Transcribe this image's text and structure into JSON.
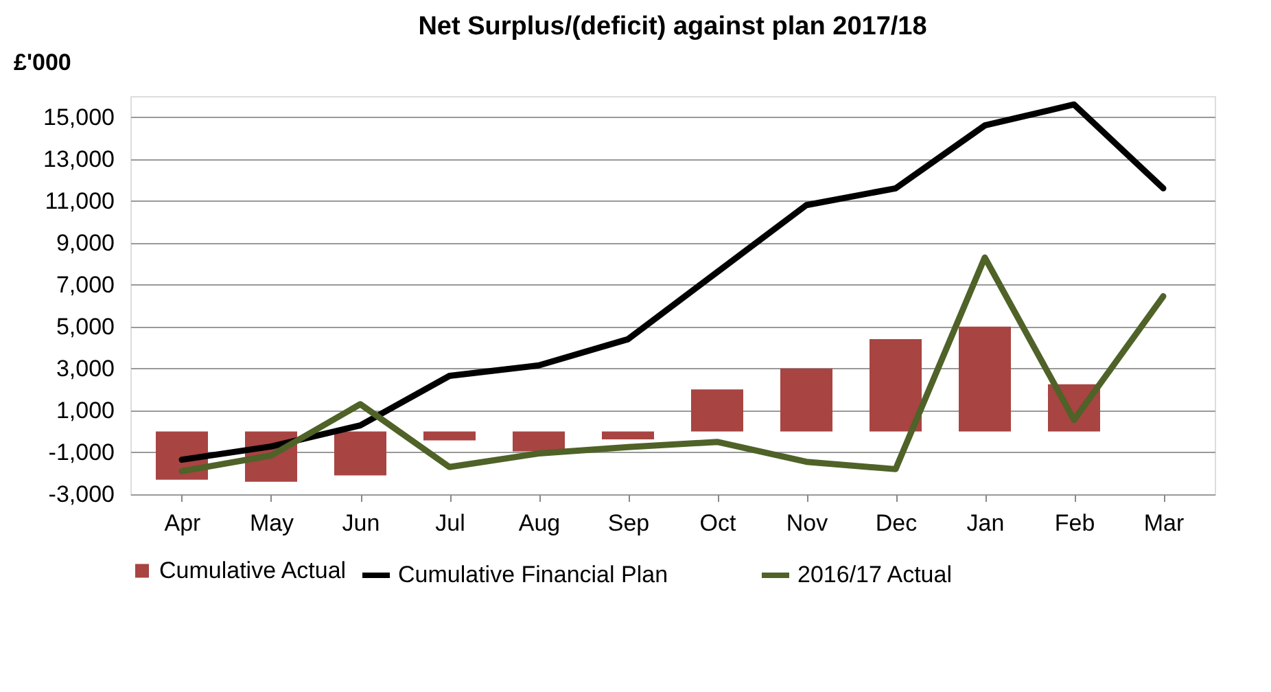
{
  "chart_data": {
    "type": "bar",
    "title": "Net Surplus/(deficit) against plan 2017/18",
    "ylabel": "£'000",
    "categories": [
      "Apr",
      "May",
      "Jun",
      "Jul",
      "Aug",
      "Sep",
      "Oct",
      "Nov",
      "Dec",
      "Jan",
      "Feb",
      "Mar"
    ],
    "series": [
      {
        "name": "Cumulative Actual",
        "color": "#a84442",
        "values": [
          -2300,
          -2400,
          -2100,
          -430,
          -950,
          -380,
          2000,
          3000,
          4400,
          5000,
          2250,
          null
        ]
      },
      {
        "name": "Cumulative Financial Plan",
        "type": "line",
        "color": "#000000",
        "values": [
          -1350,
          -720,
          290,
          2650,
          3150,
          4400,
          7600,
          10800,
          11600,
          14600,
          15600,
          11600
        ]
      },
      {
        "name": "2016/17 Actual",
        "type": "line",
        "color": "#4f6228",
        "values": [
          -1900,
          -1150,
          1300,
          -1700,
          -1050,
          -750,
          -500,
          -1450,
          -1800,
          8300,
          550,
          6450
        ]
      }
    ],
    "ylim": [
      -3000,
      16000
    ],
    "yticks": [
      {
        "value": -3000,
        "label": "-3,000"
      },
      {
        "value": -1000,
        "label": "-1,000"
      },
      {
        "value": 1000,
        "label": "1,000"
      },
      {
        "value": 3000,
        "label": "3,000"
      },
      {
        "value": 5000,
        "label": "5,000"
      },
      {
        "value": 7000,
        "label": "7,000"
      },
      {
        "value": 9000,
        "label": "9,000"
      },
      {
        "value": 11000,
        "label": "11,000"
      },
      {
        "value": 13000,
        "label": "13,000"
      },
      {
        "value": 15000,
        "label": "15,000"
      }
    ],
    "grid": "y",
    "legend": "bottom",
    "marker": "none",
    "line_style": "solid"
  }
}
